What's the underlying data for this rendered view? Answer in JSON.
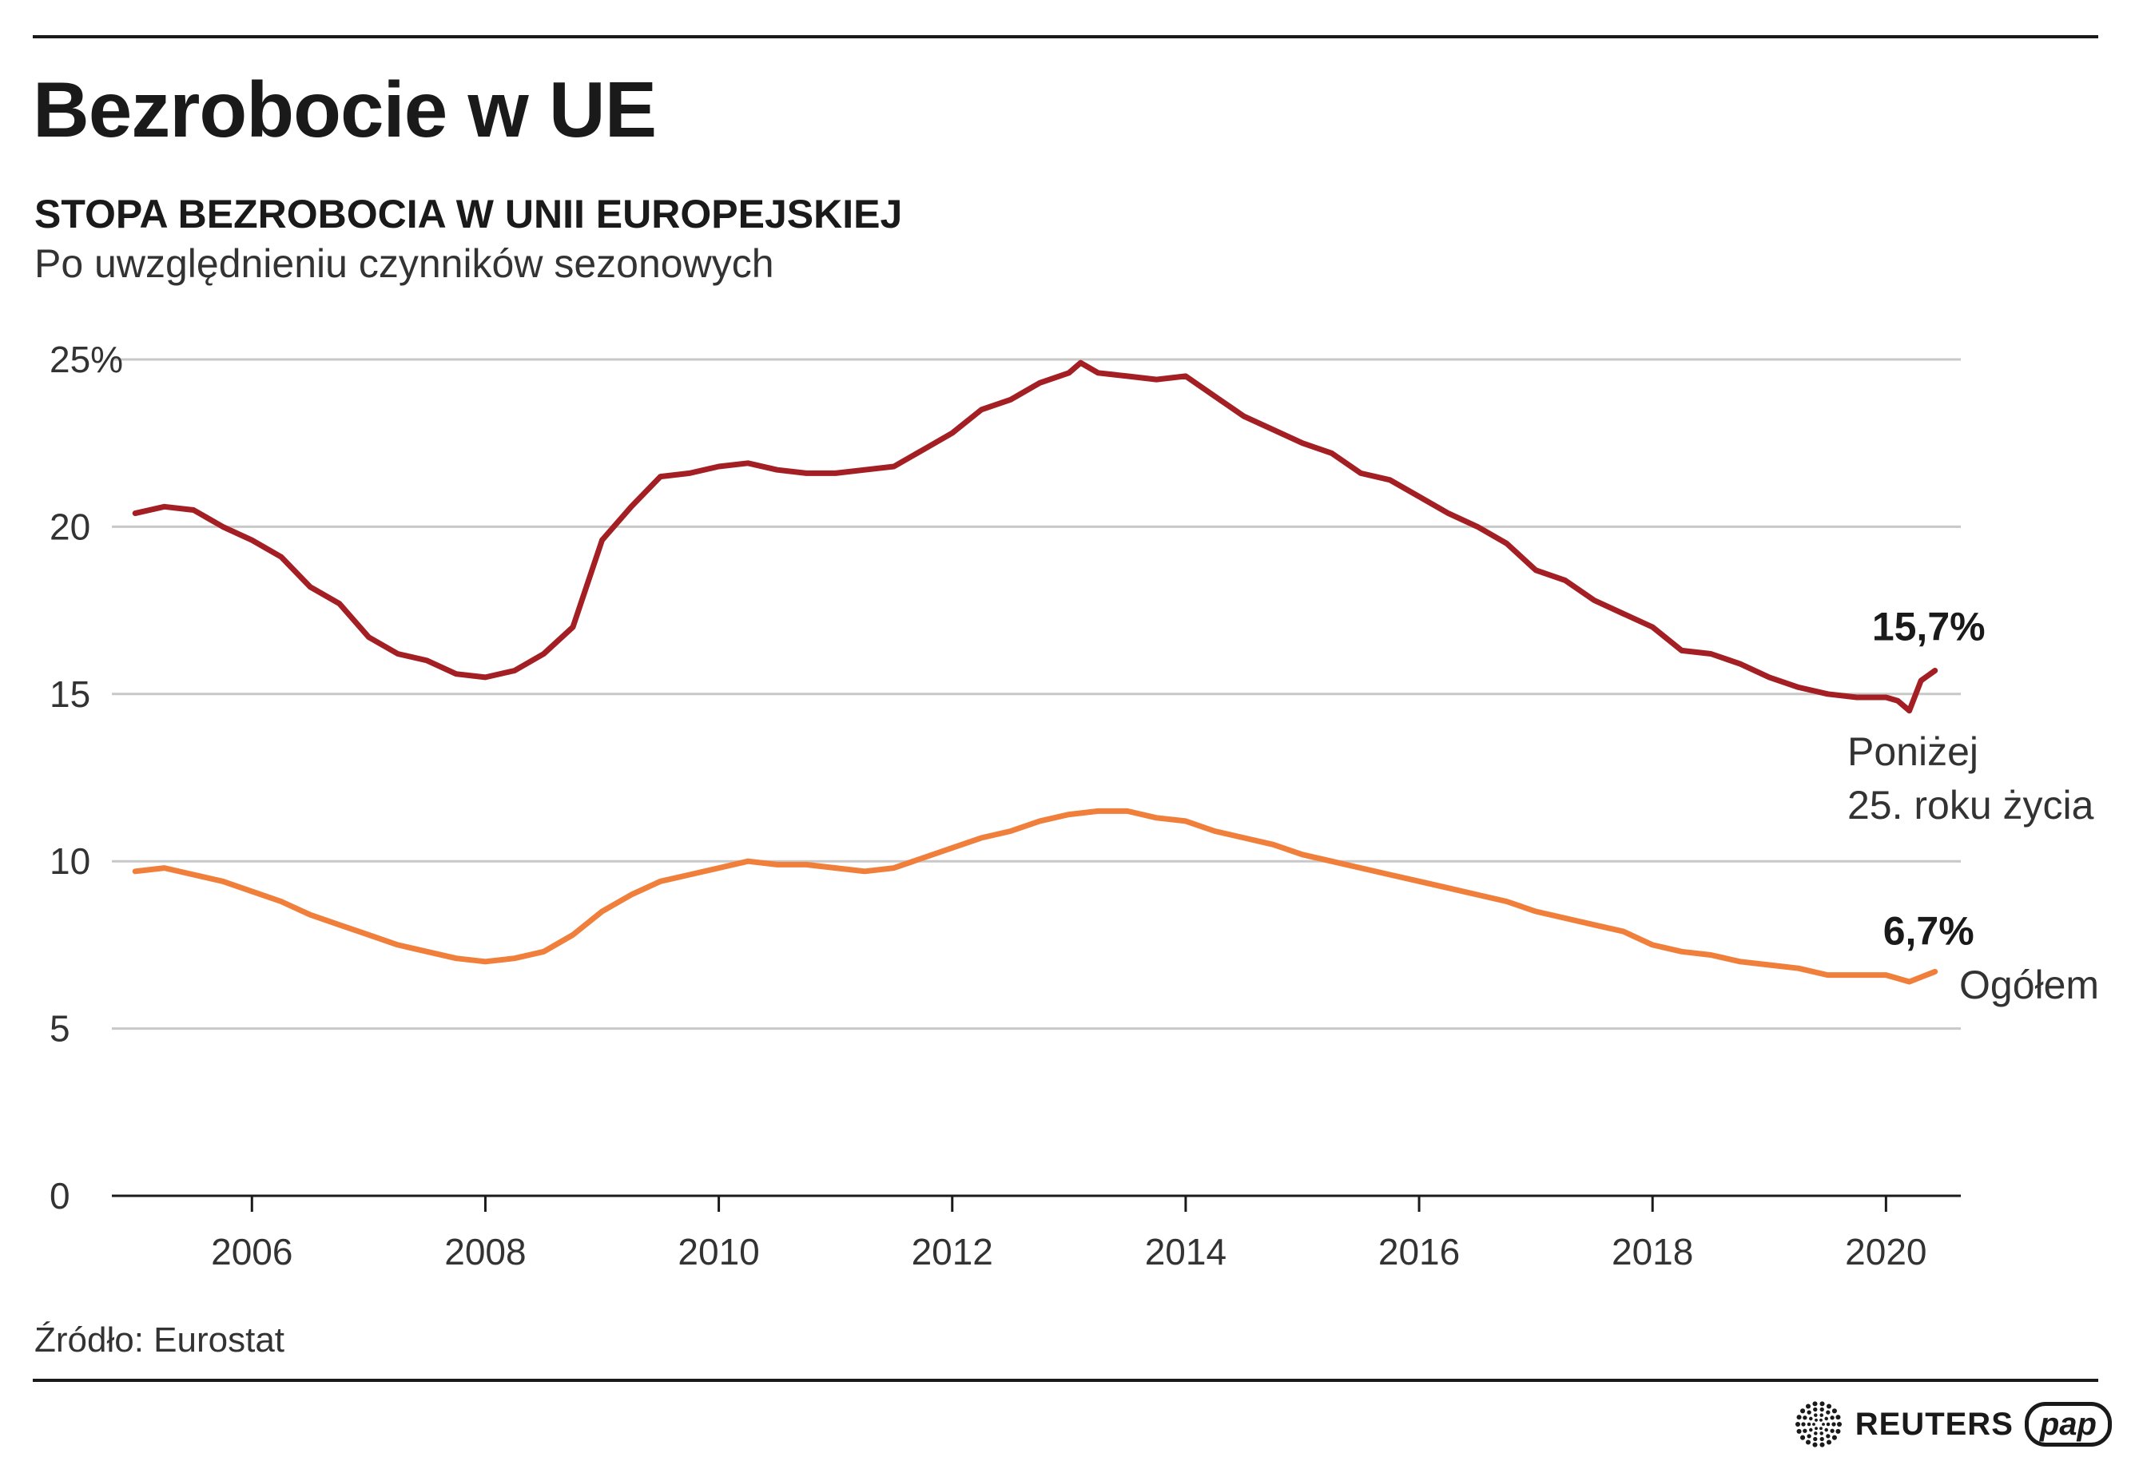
{
  "header": {
    "title": "Bezrobocie w UE",
    "subtitle": "STOPA BEZROBOCIA W UNII EUROPEJSKIEJ",
    "note": "Po uwzględnieniu czynników sezonowych"
  },
  "footer": {
    "source": "Źródło: Eurostat",
    "logo_reuters": "REUTERS",
    "logo_pap": "pap"
  },
  "colors": {
    "youth": "#a31f24",
    "total": "#f07f3c",
    "grid": "#c8c8c8",
    "text": "#1a1a1a"
  },
  "chart_data": {
    "type": "line",
    "title": "STOPA BEZROBOCIA W UNII EUROPEJSKIEJ",
    "subtitle": "Po uwzględnieniu czynników sezonowych",
    "xlim": [
      2004.8,
      2020.6
    ],
    "ylim": [
      0,
      25
    ],
    "y_ticks": [
      0,
      5,
      10,
      15,
      20,
      25
    ],
    "y_tick_labels": [
      "0",
      "5",
      "10",
      "15",
      "20",
      "25%"
    ],
    "x_ticks": [
      2006,
      2008,
      2010,
      2012,
      2014,
      2016,
      2018,
      2020
    ],
    "x_tick_labels": [
      "2006",
      "2008",
      "2010",
      "2012",
      "2014",
      "2016",
      "2018",
      "2020"
    ],
    "grid": true,
    "series": [
      {
        "name": "Poniżej 25. roku życia",
        "name_lines": [
          "Poniżej",
          "25. roku życia"
        ],
        "end_label": "15,7%",
        "color_key": "youth",
        "x": [
          2005.0,
          2005.25,
          2005.5,
          2005.75,
          2006.0,
          2006.25,
          2006.5,
          2006.75,
          2007.0,
          2007.25,
          2007.5,
          2007.75,
          2008.0,
          2008.25,
          2008.5,
          2008.75,
          2009.0,
          2009.25,
          2009.5,
          2009.75,
          2010.0,
          2010.25,
          2010.5,
          2010.75,
          2011.0,
          2011.25,
          2011.5,
          2011.75,
          2012.0,
          2012.25,
          2012.5,
          2012.75,
          2013.0,
          2013.1,
          2013.25,
          2013.5,
          2013.75,
          2014.0,
          2014.25,
          2014.5,
          2014.75,
          2015.0,
          2015.25,
          2015.5,
          2015.75,
          2016.0,
          2016.25,
          2016.5,
          2016.75,
          2017.0,
          2017.25,
          2017.5,
          2017.75,
          2018.0,
          2018.25,
          2018.5,
          2018.75,
          2019.0,
          2019.25,
          2019.5,
          2019.75,
          2020.0,
          2020.1,
          2020.2,
          2020.3,
          2020.42
        ],
        "values": [
          20.4,
          20.6,
          20.5,
          20.0,
          19.6,
          19.1,
          18.2,
          17.7,
          16.7,
          16.2,
          16.0,
          15.6,
          15.5,
          15.7,
          16.2,
          17.0,
          19.6,
          20.6,
          21.5,
          21.6,
          21.8,
          21.9,
          21.7,
          21.6,
          21.6,
          21.7,
          21.8,
          22.3,
          22.8,
          23.5,
          23.8,
          24.3,
          24.6,
          24.9,
          24.6,
          24.5,
          24.4,
          24.5,
          23.9,
          23.3,
          22.9,
          22.5,
          22.2,
          21.6,
          21.4,
          20.9,
          20.4,
          20.0,
          19.5,
          18.7,
          18.4,
          17.8,
          17.4,
          17.0,
          16.3,
          16.2,
          15.9,
          15.5,
          15.2,
          15.0,
          14.9,
          14.9,
          14.8,
          14.5,
          15.4,
          15.7
        ]
      },
      {
        "name": "Ogółem",
        "end_label": "6,7%",
        "color_key": "total",
        "x": [
          2005.0,
          2005.25,
          2005.5,
          2005.75,
          2006.0,
          2006.25,
          2006.5,
          2006.75,
          2007.0,
          2007.25,
          2007.5,
          2007.75,
          2008.0,
          2008.25,
          2008.5,
          2008.75,
          2009.0,
          2009.25,
          2009.5,
          2009.75,
          2010.0,
          2010.25,
          2010.5,
          2010.75,
          2011.0,
          2011.25,
          2011.5,
          2011.75,
          2012.0,
          2012.25,
          2012.5,
          2012.75,
          2013.0,
          2013.25,
          2013.5,
          2013.75,
          2014.0,
          2014.25,
          2014.5,
          2014.75,
          2015.0,
          2015.25,
          2015.5,
          2015.75,
          2016.0,
          2016.25,
          2016.5,
          2016.75,
          2017.0,
          2017.25,
          2017.5,
          2017.75,
          2018.0,
          2018.25,
          2018.5,
          2018.75,
          2019.0,
          2019.25,
          2019.5,
          2019.75,
          2020.0,
          2020.2,
          2020.42
        ],
        "values": [
          9.7,
          9.8,
          9.6,
          9.4,
          9.1,
          8.8,
          8.4,
          8.1,
          7.8,
          7.5,
          7.3,
          7.1,
          7.0,
          7.1,
          7.3,
          7.8,
          8.5,
          9.0,
          9.4,
          9.6,
          9.8,
          10.0,
          9.9,
          9.9,
          9.8,
          9.7,
          9.8,
          10.1,
          10.4,
          10.7,
          10.9,
          11.2,
          11.4,
          11.5,
          11.5,
          11.3,
          11.2,
          10.9,
          10.7,
          10.5,
          10.2,
          10.0,
          9.8,
          9.6,
          9.4,
          9.2,
          9.0,
          8.8,
          8.5,
          8.3,
          8.1,
          7.9,
          7.5,
          7.3,
          7.2,
          7.0,
          6.9,
          6.8,
          6.6,
          6.6,
          6.6,
          6.4,
          6.7
        ]
      }
    ]
  }
}
